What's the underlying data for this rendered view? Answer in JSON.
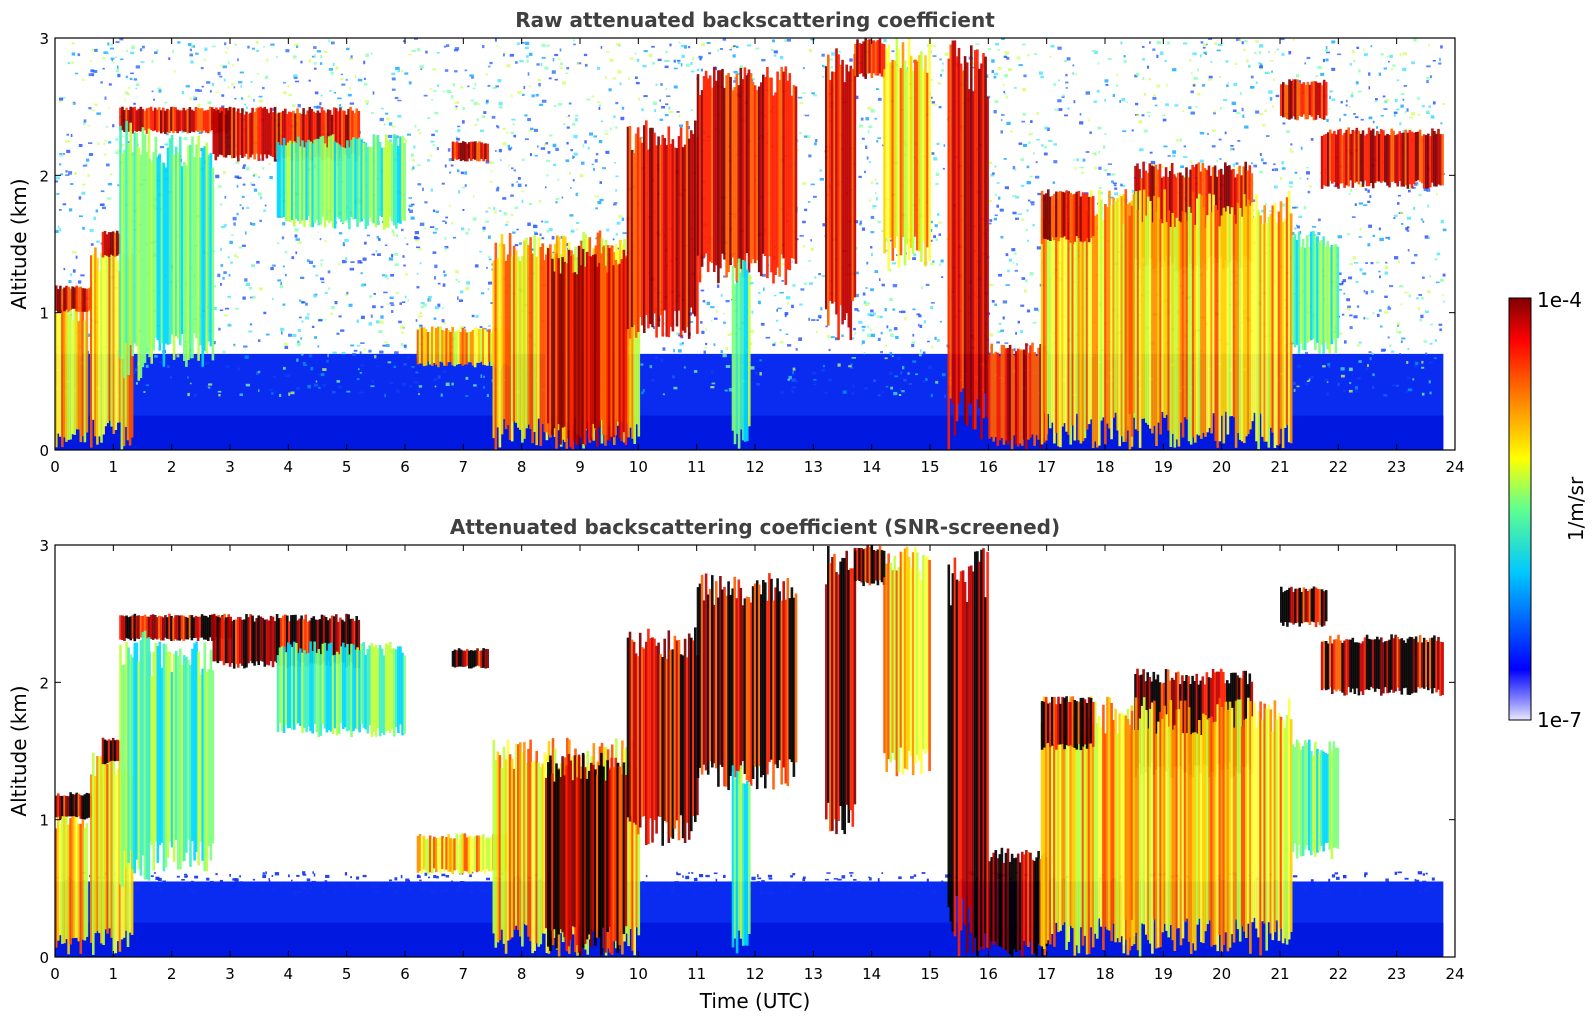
{
  "chart_data": [
    {
      "type": "heatmap",
      "title": "Raw attenuated backscattering coefficient",
      "xlabel": "",
      "ylabel": "Altitude (km)",
      "xlim": [
        0,
        24
      ],
      "ylim": [
        0,
        3
      ],
      "x_ticks": [
        "0",
        "1",
        "2",
        "3",
        "4",
        "5",
        "6",
        "7",
        "8",
        "9",
        "10",
        "11",
        "12",
        "13",
        "14",
        "15",
        "16",
        "17",
        "18",
        "19",
        "20",
        "21",
        "22",
        "23",
        "24"
      ],
      "y_ticks": [
        "0",
        "1",
        "2",
        "3"
      ],
      "grid": false,
      "screened": false,
      "features": [
        {
          "t0": 0.0,
          "t1": 0.55,
          "z0": 0.0,
          "z1": 1.1,
          "level": "high"
        },
        {
          "t0": 0.0,
          "t1": 0.6,
          "z0": 1.0,
          "z1": 1.2,
          "level": "peak"
        },
        {
          "t0": 0.6,
          "t1": 1.3,
          "z0": 0.0,
          "z1": 1.5,
          "level": "high"
        },
        {
          "t0": 0.8,
          "t1": 1.1,
          "z0": 1.4,
          "z1": 1.6,
          "level": "peak"
        },
        {
          "t0": 1.1,
          "t1": 3.0,
          "z0": 2.3,
          "z1": 2.5,
          "level": "peak"
        },
        {
          "t0": 1.1,
          "t1": 1.6,
          "z0": 0.5,
          "z1": 2.4,
          "level": "mid"
        },
        {
          "t0": 1.6,
          "t1": 2.7,
          "z0": 0.6,
          "z1": 2.3,
          "level": "mid"
        },
        {
          "t0": 2.7,
          "t1": 5.2,
          "z0": 2.1,
          "z1": 2.5,
          "level": "peak"
        },
        {
          "t0": 3.8,
          "t1": 6.0,
          "z0": 1.6,
          "z1": 2.3,
          "level": "mid"
        },
        {
          "t0": 6.2,
          "t1": 7.8,
          "z0": 0.6,
          "z1": 0.9,
          "level": "high"
        },
        {
          "t0": 6.8,
          "t1": 7.4,
          "z0": 2.1,
          "z1": 2.25,
          "level": "peak"
        },
        {
          "t0": 7.5,
          "t1": 10.0,
          "z0": 0.0,
          "z1": 1.6,
          "level": "high"
        },
        {
          "t0": 8.4,
          "t1": 9.8,
          "z0": 0.0,
          "z1": 1.5,
          "level": "peak"
        },
        {
          "t0": 9.8,
          "t1": 11.0,
          "z0": 0.8,
          "z1": 2.4,
          "level": "peak"
        },
        {
          "t0": 11.0,
          "t1": 12.7,
          "z0": 1.2,
          "z1": 2.8,
          "level": "peak"
        },
        {
          "t0": 11.6,
          "t1": 11.9,
          "z0": 0.0,
          "z1": 1.4,
          "level": "mid"
        },
        {
          "t0": 13.2,
          "t1": 13.7,
          "z0": 0.8,
          "z1": 3.0,
          "level": "peak"
        },
        {
          "t0": 13.7,
          "t1": 14.2,
          "z0": 2.7,
          "z1": 3.0,
          "level": "peak"
        },
        {
          "t0": 14.2,
          "t1": 15.0,
          "z0": 1.3,
          "z1": 3.0,
          "level": "high"
        },
        {
          "t0": 15.3,
          "t1": 16.0,
          "z0": 0.0,
          "z1": 3.0,
          "level": "peak"
        },
        {
          "t0": 16.0,
          "t1": 17.0,
          "z0": 0.0,
          "z1": 0.8,
          "level": "peak"
        },
        {
          "t0": 16.9,
          "t1": 18.5,
          "z0": 0.0,
          "z1": 1.9,
          "level": "high"
        },
        {
          "t0": 16.9,
          "t1": 17.8,
          "z0": 1.5,
          "z1": 1.9,
          "level": "peak"
        },
        {
          "t0": 18.5,
          "t1": 20.5,
          "z0": 1.3,
          "z1": 2.1,
          "level": "peak"
        },
        {
          "t0": 18.3,
          "t1": 21.2,
          "z0": 0.0,
          "z1": 1.9,
          "level": "high"
        },
        {
          "t0": 21.2,
          "t1": 22.0,
          "z0": 0.7,
          "z1": 1.6,
          "level": "mid"
        },
        {
          "t0": 21.0,
          "t1": 21.8,
          "z0": 2.4,
          "z1": 2.7,
          "level": "peak"
        },
        {
          "t0": 21.7,
          "t1": 23.8,
          "z0": 1.9,
          "z1": 2.35,
          "level": "peak"
        }
      ]
    },
    {
      "type": "heatmap",
      "title": "Attenuated backscattering coefficient (SNR-screened)",
      "xlabel": "Time (UTC)",
      "ylabel": "Altitude (km)",
      "xlim": [
        0,
        24
      ],
      "ylim": [
        0,
        3
      ],
      "x_ticks": [
        "0",
        "1",
        "2",
        "3",
        "4",
        "5",
        "6",
        "7",
        "8",
        "9",
        "10",
        "11",
        "12",
        "13",
        "14",
        "15",
        "16",
        "17",
        "18",
        "19",
        "20",
        "21",
        "22",
        "23",
        "24"
      ],
      "y_ticks": [
        "0",
        "1",
        "2",
        "3"
      ],
      "grid": false,
      "screened": true,
      "features": [
        {
          "t0": 0.0,
          "t1": 0.55,
          "z0": 0.0,
          "z1": 1.1,
          "level": "high"
        },
        {
          "t0": 0.0,
          "t1": 0.6,
          "z0": 1.0,
          "z1": 1.2,
          "level": "peak"
        },
        {
          "t0": 0.6,
          "t1": 1.3,
          "z0": 0.0,
          "z1": 1.5,
          "level": "high"
        },
        {
          "t0": 0.8,
          "t1": 1.1,
          "z0": 1.4,
          "z1": 1.6,
          "level": "peak"
        },
        {
          "t0": 1.1,
          "t1": 3.0,
          "z0": 2.3,
          "z1": 2.5,
          "level": "peak"
        },
        {
          "t0": 1.1,
          "t1": 1.6,
          "z0": 0.5,
          "z1": 2.4,
          "level": "mid"
        },
        {
          "t0": 1.6,
          "t1": 2.7,
          "z0": 0.6,
          "z1": 2.3,
          "level": "mid"
        },
        {
          "t0": 2.7,
          "t1": 5.2,
          "z0": 2.1,
          "z1": 2.5,
          "level": "peak"
        },
        {
          "t0": 3.8,
          "t1": 6.0,
          "z0": 1.6,
          "z1": 2.3,
          "level": "mid"
        },
        {
          "t0": 6.2,
          "t1": 7.8,
          "z0": 0.6,
          "z1": 0.9,
          "level": "high"
        },
        {
          "t0": 6.8,
          "t1": 7.4,
          "z0": 2.1,
          "z1": 2.25,
          "level": "peak"
        },
        {
          "t0": 7.5,
          "t1": 10.0,
          "z0": 0.0,
          "z1": 1.6,
          "level": "high"
        },
        {
          "t0": 8.4,
          "t1": 9.8,
          "z0": 0.0,
          "z1": 1.5,
          "level": "peak"
        },
        {
          "t0": 9.8,
          "t1": 11.0,
          "z0": 0.8,
          "z1": 2.4,
          "level": "peak"
        },
        {
          "t0": 11.0,
          "t1": 12.7,
          "z0": 1.2,
          "z1": 2.8,
          "level": "peak"
        },
        {
          "t0": 11.6,
          "t1": 11.9,
          "z0": 0.0,
          "z1": 1.4,
          "level": "mid"
        },
        {
          "t0": 13.2,
          "t1": 13.7,
          "z0": 0.8,
          "z1": 3.0,
          "level": "peak"
        },
        {
          "t0": 13.7,
          "t1": 14.2,
          "z0": 2.7,
          "z1": 3.0,
          "level": "peak"
        },
        {
          "t0": 14.2,
          "t1": 15.0,
          "z0": 1.3,
          "z1": 3.0,
          "level": "high"
        },
        {
          "t0": 15.3,
          "t1": 16.0,
          "z0": 0.0,
          "z1": 3.0,
          "level": "peak"
        },
        {
          "t0": 16.0,
          "t1": 17.0,
          "z0": 0.0,
          "z1": 0.8,
          "level": "peak"
        },
        {
          "t0": 16.9,
          "t1": 18.5,
          "z0": 0.0,
          "z1": 1.9,
          "level": "high"
        },
        {
          "t0": 16.9,
          "t1": 17.8,
          "z0": 1.5,
          "z1": 1.9,
          "level": "peak"
        },
        {
          "t0": 18.5,
          "t1": 20.5,
          "z0": 1.3,
          "z1": 2.1,
          "level": "peak"
        },
        {
          "t0": 18.3,
          "t1": 21.2,
          "z0": 0.0,
          "z1": 1.9,
          "level": "high"
        },
        {
          "t0": 21.2,
          "t1": 22.0,
          "z0": 0.7,
          "z1": 1.6,
          "level": "mid"
        },
        {
          "t0": 21.0,
          "t1": 21.8,
          "z0": 2.4,
          "z1": 2.7,
          "level": "peak"
        },
        {
          "t0": 21.7,
          "t1": 23.8,
          "z0": 1.9,
          "z1": 2.35,
          "level": "peak"
        }
      ]
    }
  ],
  "colorbar": {
    "label": "1/m/sr",
    "max_label": "1e-4",
    "min_label": "1e-7",
    "colormap": [
      "#e8e8ff",
      "#0000ff",
      "#00c8ff",
      "#60ff90",
      "#ffff00",
      "#ff7000",
      "#ff0000",
      "#800000"
    ]
  },
  "colors": {
    "background_blue": "#0a2cf0",
    "noise_white": "#ffffff",
    "saturated_black": "#000000",
    "title_gray": "#404040"
  }
}
